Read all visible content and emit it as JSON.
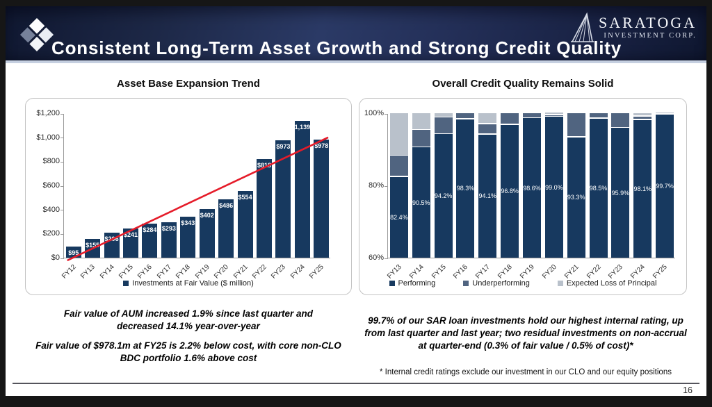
{
  "header": {
    "title": "Consistent Long-Term Asset Growth and Strong Credit Quality",
    "logo": {
      "primary": "SARATOGA",
      "secondary": "INVESTMENT CORP."
    }
  },
  "left_panel": {
    "note1": "Fair value of AUM increased 1.9% since last quarter and decreased 14.1% year-over-year",
    "note2": "Fair value of $978.1m at FY25 is 2.2% below cost, with core non-CLO BDC portfolio 1.6% above cost"
  },
  "right_panel": {
    "note1": "99.7% of our SAR loan investments hold our highest internal rating, up from last quarter and last year; two residual investments on non-accrual at quarter-end (0.3% of fair value / 0.5% of cost)*"
  },
  "footnote": "* Internal credit ratings exclude our investment in our CLO and our equity positions",
  "page_number": "16",
  "colors": {
    "bar_navy": "#17395f",
    "underperforming_slate": "#506480",
    "expected_loss_gray": "#b9c1cb",
    "trend_red": "#e51b29",
    "header_navy": "#1d2847",
    "accent_strip": "#c5cfe0"
  },
  "chart_data": [
    {
      "type": "bar",
      "title": "Asset Base Expansion Trend",
      "categories": [
        "FY12",
        "FY13",
        "FY14",
        "FY15",
        "FY16",
        "FY17",
        "FY18",
        "FY19",
        "FY20",
        "FY21",
        "FY22",
        "FY23",
        "FY24",
        "FY25"
      ],
      "values": [
        95,
        155,
        206,
        241,
        284,
        293,
        343,
        402,
        486,
        554,
        818,
        973,
        1139,
        978
      ],
      "bar_labels": [
        "$95",
        "$155",
        "$206",
        "$241",
        "$284",
        "$293",
        "$343",
        "$402",
        "$486",
        "$554",
        "$818",
        "$973",
        "1,139",
        "$978"
      ],
      "bar_color": "#17395f",
      "ylim": [
        0,
        1200
      ],
      "yticks": [
        {
          "label": "$0",
          "value": 0
        },
        {
          "label": "$200",
          "value": 200
        },
        {
          "label": "$400",
          "value": 400
        },
        {
          "label": "$600",
          "value": 600
        },
        {
          "label": "$800",
          "value": 800
        },
        {
          "label": "$1,000",
          "value": 1000
        },
        {
          "label": "$1,200",
          "value": 1200
        }
      ],
      "legend": [
        "Investments at Fair Value ($ million)"
      ],
      "legend_position": "bottom",
      "grid": false,
      "trendline": {
        "color": "#e51b29",
        "start_value": 0,
        "end_value": 1005
      }
    },
    {
      "type": "bar",
      "subtype": "stacked",
      "title": "Overall Credit Quality Remains Solid",
      "categories": [
        "FY13",
        "FY14",
        "FY15",
        "FY16",
        "FY17",
        "FY18",
        "FY19",
        "FY20",
        "FY21",
        "FY22",
        "FY23",
        "FY24",
        "FY25"
      ],
      "series": [
        {
          "name": "Performing",
          "color": "#17395f",
          "values": [
            82.4,
            90.5,
            94.2,
            98.3,
            94.1,
            96.8,
            98.6,
            99.0,
            93.3,
            98.5,
            95.9,
            98.1,
            99.7
          ]
        },
        {
          "name": "Underperforming",
          "color": "#506480",
          "values": [
            5.8,
            4.8,
            4.6,
            1.7,
            2.9,
            3.2,
            1.4,
            0.3,
            6.7,
            1.5,
            4.1,
            1.0,
            0
          ]
        },
        {
          "name": "Expected Loss of Principal",
          "color": "#b9c1cb",
          "values": [
            11.8,
            4.7,
            1.2,
            0,
            3.0,
            0,
            0,
            0.7,
            0,
            0,
            0,
            0.9,
            0.3
          ]
        }
      ],
      "bar_labels": [
        "82.4%",
        "90.5%",
        "94.2%",
        "98.3%",
        "94.1%",
        "96.8%",
        "98.6%",
        "99.0%",
        "93.3%",
        "98.5%",
        "95.9%",
        "98.1%",
        "99.7%"
      ],
      "ylim": [
        60,
        100
      ],
      "yticks": [
        {
          "label": "100%",
          "value": 100
        },
        {
          "label": "80%",
          "value": 80
        },
        {
          "label": "60%",
          "value": 60
        }
      ],
      "legend_position": "bottom",
      "grid": false
    }
  ]
}
